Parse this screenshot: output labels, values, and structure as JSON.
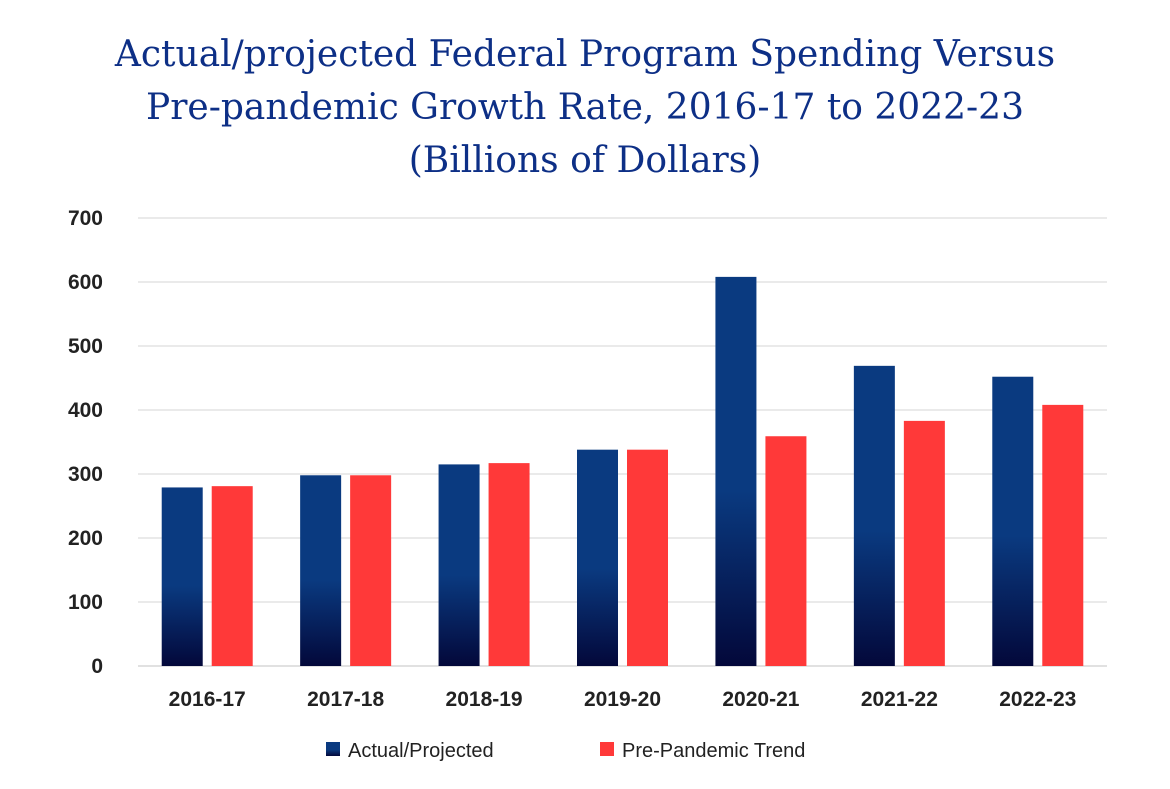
{
  "chart_data": {
    "type": "bar",
    "title_lines": [
      "Actual/projected Federal Program Spending Versus",
      "Pre-pandemic Growth Rate, 2016-17 to 2022-23",
      "(Billions of Dollars)"
    ],
    "categories": [
      "2016-17",
      "2017-18",
      "2018-19",
      "2019-20",
      "2020-21",
      "2021-22",
      "2022-23"
    ],
    "series": [
      {
        "name": "Actual/Projected",
        "values": [
          279,
          298,
          315,
          338,
          608,
          469,
          452
        ],
        "color_top": "#0a3a80",
        "color_bottom": "#03083a"
      },
      {
        "name": "Pre-Pandemic Trend",
        "values": [
          281,
          298,
          317,
          338,
          359,
          383,
          408
        ],
        "color": "#ff3939"
      }
    ],
    "ylim": [
      0,
      700
    ],
    "yticks": [
      0,
      100,
      200,
      300,
      400,
      500,
      600,
      700
    ],
    "grid": true,
    "legend_position": "bottom",
    "xlabel": "",
    "ylabel": ""
  }
}
